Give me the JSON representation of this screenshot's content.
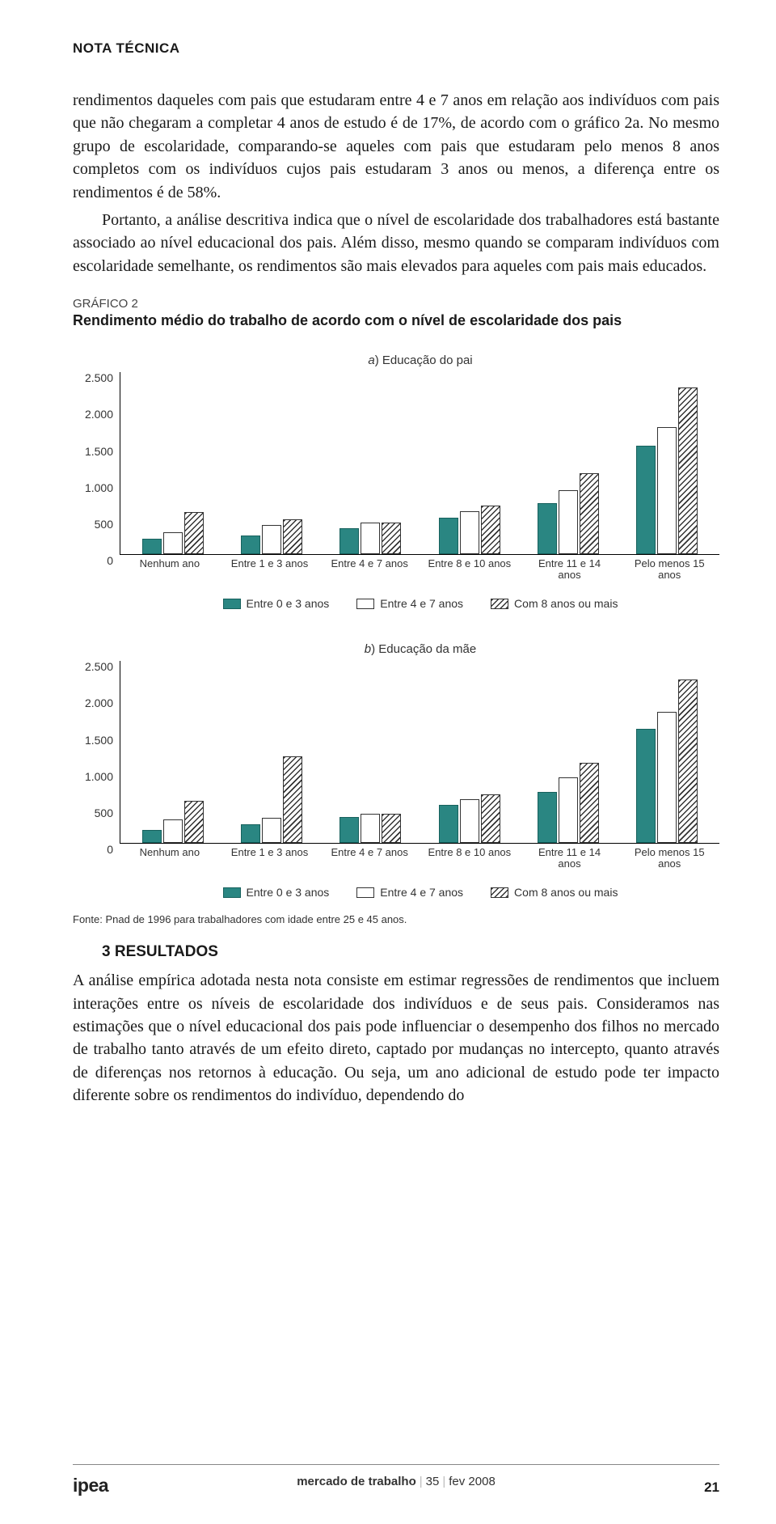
{
  "header": "NOTA TÉCNICA",
  "para1": "rendimentos daqueles com pais que estudaram entre 4 e 7 anos em relação aos indivíduos com pais que não chegaram a completar 4 anos de estudo é de 17%, de acordo com o gráfico 2a. No mesmo grupo de escolaridade, comparando-se aqueles com pais que estudaram pelo menos 8 anos completos com os indivíduos cujos pais estudaram 3 anos ou menos, a diferença entre os rendimentos é de 58%.",
  "para2": "Portanto, a análise descritiva indica que o nível de escolaridade dos trabalhadores está bastante associado ao nível educacional dos pais. Além disso, mesmo quando se comparam indivíduos com escolaridade semelhante, os rendimentos são mais elevados para aqueles com pais mais educados.",
  "graf_label": "GRÁFICO 2",
  "graf_title": "Rendimento médio do trabalho de acordo com o nível de escolaridade dos pais",
  "chartA": {
    "subtitle_prefix": "a",
    "subtitle": ") Educação do pai",
    "ymax": 2500,
    "yticks": [
      0,
      500,
      1000,
      1500,
      2000,
      2500
    ],
    "ytick_labels": [
      "0",
      "500",
      "1.000",
      "1.500",
      "2.000",
      "2.500"
    ],
    "categories": [
      "Nenhum ano",
      "Entre 1 e 3 anos",
      "Entre 4 e 7 anos",
      "Entre 8 e 10 anos",
      "Entre 11 e 14\nanos",
      "Pelo menos 15\nanos"
    ],
    "series_labels": [
      "Entre 0 e 3 anos",
      "Entre 4 e 7 anos",
      "Com 8 anos ou mais"
    ],
    "series_colors": [
      "#2a8682",
      "#ffffff",
      "pattern"
    ],
    "groups": [
      [
        210,
        300,
        580
      ],
      [
        260,
        400,
        480
      ],
      [
        360,
        430,
        430
      ],
      [
        500,
        590,
        660
      ],
      [
        700,
        870,
        1110
      ],
      [
        1480,
        1740,
        2280
      ]
    ]
  },
  "chartB": {
    "subtitle_prefix": "b",
    "subtitle": ") Educação da mãe",
    "ymax": 2500,
    "yticks": [
      0,
      500,
      1000,
      1500,
      2000,
      2500
    ],
    "ytick_labels": [
      "0",
      "500",
      "1.000",
      "1.500",
      "2.000",
      "2.500"
    ],
    "categories": [
      "Nenhum ano",
      "Entre 1 e 3 anos",
      "Entre 4 e 7 anos",
      "Entre 8 e 10 anos",
      "Entre 11 e 14\nanos",
      "Pelo menos 15\nanos"
    ],
    "series_labels": [
      "Entre 0 e 3 anos",
      "Entre 4 e 7 anos",
      "Com 8 anos ou mais"
    ],
    "groups": [
      [
        180,
        320,
        580
      ],
      [
        260,
        340,
        1190
      ],
      [
        360,
        400,
        400
      ],
      [
        520,
        600,
        670
      ],
      [
        700,
        900,
        1100
      ],
      [
        1560,
        1790,
        2240
      ]
    ]
  },
  "fonte": "Fonte: Pnad de 1996 para trabalhadores com idade entre 25 e 45 anos.",
  "section_head": "3  RESULTADOS",
  "para3": "A análise empírica adotada nesta nota consiste em estimar regressões de rendimentos que incluem interações entre os níveis de escolaridade dos indivíduos e de seus pais. Consideramos nas estimações que o nível educacional dos pais pode influenciar o desempenho dos filhos no mercado de trabalho tanto através de um efeito direto, captado por mudanças no intercepto, quanto através de diferenças nos retornos à educação. Ou seja, um ano adicional de estudo pode ter impacto diferente sobre os rendimentos do indivíduo, dependendo do",
  "footer": {
    "brand": "ipea",
    "center_bold": "mercado de trabalho",
    "issue": "35",
    "date": "fev 2008",
    "page": "21"
  }
}
